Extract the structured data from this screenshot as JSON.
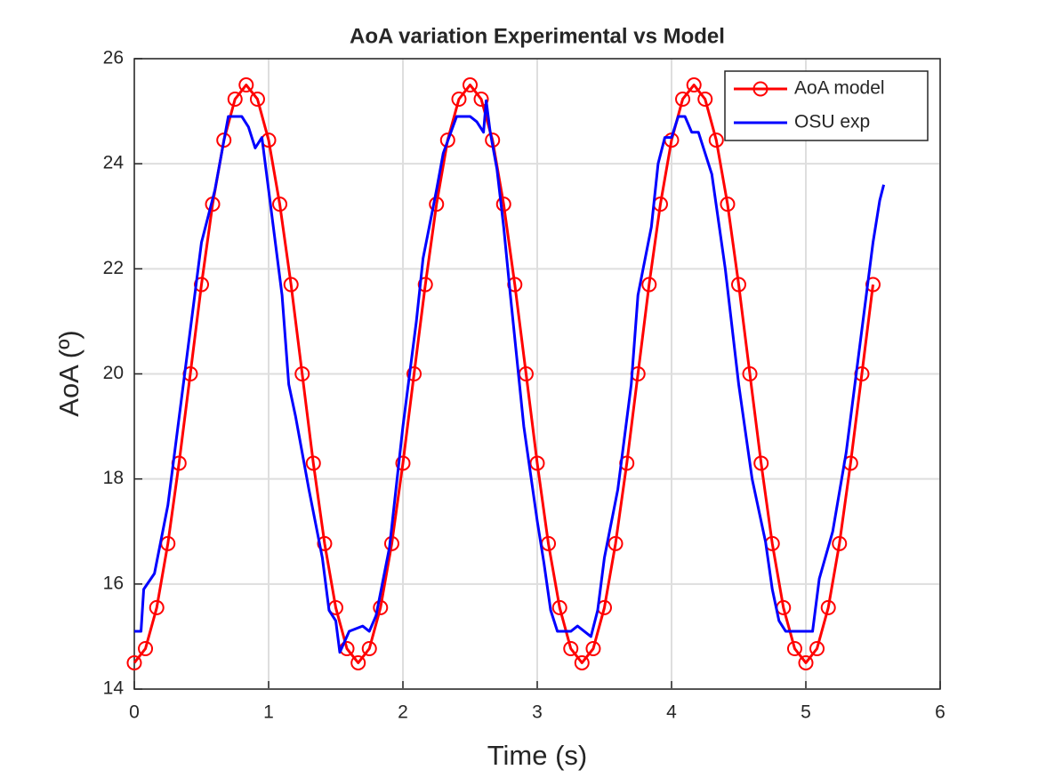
{
  "chart_data": {
    "type": "line",
    "title": "AoA variation Experimental vs Model",
    "x_label": "Time (s)",
    "y_label": "AoA (º)",
    "xlim": [
      0,
      6
    ],
    "xticks": [
      0,
      1,
      2,
      3,
      4,
      5,
      6
    ],
    "ylim": [
      14,
      26
    ],
    "yticks": [
      14,
      16,
      18,
      20,
      22,
      24,
      26
    ],
    "grid": true,
    "legend": "northeast",
    "series": [
      {
        "name": "AoA model",
        "color": "#ff0000",
        "marker": "circle",
        "x": [
          0,
          0.083,
          0.167,
          0.25,
          0.333,
          0.417,
          0.5,
          0.583,
          0.667,
          0.75,
          0.833,
          0.917,
          1,
          1.083,
          1.167,
          1.25,
          1.333,
          1.417,
          1.5,
          1.583,
          1.667,
          1.75,
          1.833,
          1.917,
          2,
          2.083,
          2.167,
          2.25,
          2.333,
          2.417,
          2.5,
          2.583,
          2.667,
          2.75,
          2.833,
          2.917,
          3,
          3.083,
          3.167,
          3.25,
          3.333,
          3.417,
          3.5,
          3.583,
          3.667,
          3.75,
          3.833,
          3.917,
          4,
          4.083,
          4.167,
          4.25,
          4.333,
          4.417,
          4.5,
          4.583,
          4.667,
          4.75,
          4.833,
          4.917,
          5,
          5.083,
          5.167,
          5.25,
          5.333,
          5.417,
          5.5
        ],
        "values": [
          14.5,
          14.77,
          15.55,
          16.77,
          18.3,
          20,
          21.7,
          23.23,
          24.45,
          25.23,
          25.5,
          25.23,
          24.45,
          23.23,
          21.7,
          20,
          18.3,
          16.77,
          15.55,
          14.77,
          14.5,
          14.77,
          15.55,
          16.77,
          18.3,
          20,
          21.7,
          23.23,
          24.45,
          25.23,
          25.5,
          25.23,
          24.45,
          23.23,
          21.7,
          20,
          18.3,
          16.77,
          15.55,
          14.77,
          14.5,
          14.77,
          15.55,
          16.77,
          18.3,
          20,
          21.7,
          23.23,
          24.45,
          25.23,
          25.5,
          25.23,
          24.45,
          23.23,
          21.7,
          20,
          18.3,
          16.77,
          15.55,
          14.77,
          14.5,
          14.77,
          15.55,
          16.77,
          18.3,
          20,
          21.7
        ]
      },
      {
        "name": "OSU exp",
        "color": "#0000ff",
        "marker": "none",
        "x": [
          0,
          0.05,
          0.07,
          0.15,
          0.25,
          0.35,
          0.45,
          0.5,
          0.6,
          0.7,
          0.8,
          0.85,
          0.9,
          0.95,
          1,
          1.1,
          1.15,
          1.2,
          1.3,
          1.4,
          1.45,
          1.5,
          1.53,
          1.6,
          1.7,
          1.75,
          1.8,
          1.9,
          2,
          2.1,
          2.15,
          2.25,
          2.3,
          2.4,
          2.5,
          2.55,
          2.6,
          2.62,
          2.65,
          2.7,
          2.75,
          2.8,
          2.9,
          3,
          3.05,
          3.1,
          3.15,
          3.25,
          3.3,
          3.4,
          3.45,
          3.5,
          3.6,
          3.7,
          3.75,
          3.85,
          3.9,
          3.95,
          4,
          4.05,
          4.1,
          4.15,
          4.2,
          4.3,
          4.4,
          4.5,
          4.6,
          4.7,
          4.75,
          4.8,
          4.85,
          4.9,
          5,
          5.05,
          5.1,
          5.2,
          5.3,
          5.4,
          5.5,
          5.55,
          5.58
        ],
        "values": [
          15.1,
          15.1,
          15.9,
          16.2,
          17.5,
          19.5,
          21.5,
          22.5,
          23.5,
          24.9,
          24.9,
          24.7,
          24.3,
          24.5,
          23.5,
          21.5,
          19.8,
          19.2,
          17.8,
          16.5,
          15.5,
          15.3,
          14.7,
          15.1,
          15.2,
          15.1,
          15.4,
          16.7,
          19,
          21,
          22.2,
          23.5,
          24.2,
          24.9,
          24.9,
          24.8,
          24.6,
          25.2,
          24.6,
          23.9,
          22.8,
          21.5,
          19,
          17.2,
          16.4,
          15.5,
          15.1,
          15.1,
          15.2,
          15,
          15.5,
          16.5,
          17.8,
          19.8,
          21.5,
          22.8,
          24,
          24.5,
          24.5,
          24.9,
          24.9,
          24.6,
          24.6,
          23.8,
          22,
          19.8,
          18,
          16.8,
          15.9,
          15.3,
          15.1,
          15.1,
          15.1,
          15.1,
          16.1,
          17,
          18.5,
          20.5,
          22.5,
          23.3,
          23.6
        ]
      }
    ]
  }
}
